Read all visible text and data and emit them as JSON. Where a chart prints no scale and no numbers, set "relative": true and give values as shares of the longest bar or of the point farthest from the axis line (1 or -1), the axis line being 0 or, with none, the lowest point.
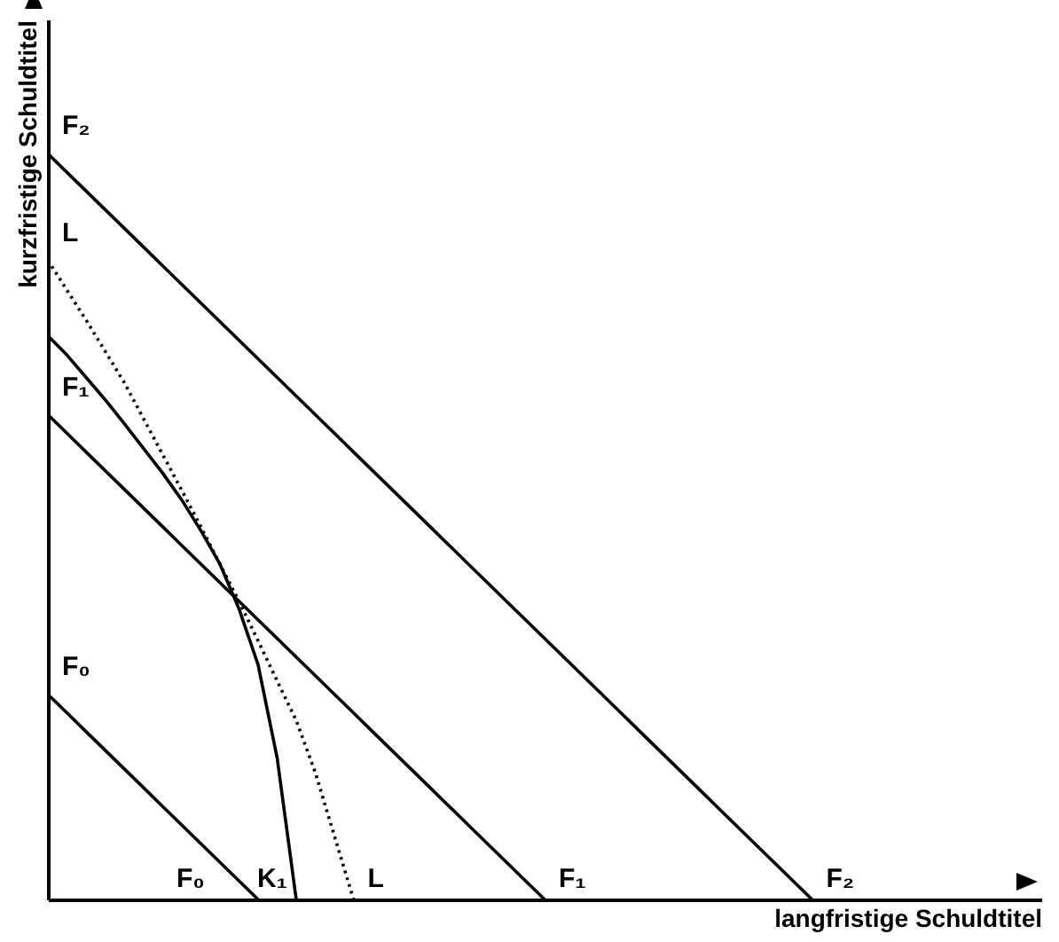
{
  "chart_data": {
    "type": "line",
    "relative": true,
    "xlabel": "langfristige Schuldtitel",
    "ylabel": "kurzfristige Schuldtitel",
    "categories": [
      null,
      null,
      null,
      null,
      null,
      null,
      null,
      null,
      null,
      null,
      null,
      null,
      null,
      null,
      null,
      null,
      null,
      null,
      null,
      null,
      null,
      null,
      null,
      null,
      null,
      null,
      null,
      null,
      null,
      null,
      null,
      null,
      null,
      null,
      null,
      null,
      null,
      null,
      null,
      null,
      null,
      null,
      null,
      null,
      null,
      null,
      null,
      null,
      null,
      null,
      null,
      null,
      null
    ],
    "series": [
      {
        "name": "F₀",
        "color": "#000000",
        "line_style": "solid",
        "values": [
          0.275,
          0.25,
          0.225,
          0.2,
          0.175,
          0.15,
          0.125,
          0.1,
          0.075,
          0.05,
          0.025,
          0,
          null,
          null,
          null,
          null,
          null,
          null,
          null,
          null,
          null,
          null,
          null,
          null,
          null,
          null,
          null,
          null,
          null,
          null,
          null,
          null,
          null,
          null,
          null,
          null,
          null,
          null,
          null,
          null,
          null,
          null,
          null,
          null,
          null,
          null,
          null,
          null,
          null,
          null,
          null,
          null,
          null
        ]
      },
      {
        "name": "F₁",
        "color": "#000000",
        "line_style": "solid",
        "values": [
          0.65,
          0.625,
          0.6,
          0.575,
          0.55,
          0.525,
          0.5,
          0.475,
          0.45,
          0.425,
          0.4,
          0.375,
          0.35,
          0.325,
          0.3,
          0.275,
          0.25,
          0.225,
          0.2,
          0.175,
          0.15,
          0.125,
          0.1,
          0.075,
          0.05,
          0.025,
          0,
          null,
          null,
          null,
          null,
          null,
          null,
          null,
          null,
          null,
          null,
          null,
          null,
          null,
          null,
          null,
          null,
          null,
          null,
          null,
          null,
          null,
          null,
          null,
          null,
          null,
          null
        ]
      },
      {
        "name": "F₂",
        "color": "#000000",
        "line_style": "solid",
        "values": [
          1,
          0.975,
          0.95,
          0.925,
          0.9,
          0.875,
          0.85,
          0.825,
          0.8,
          0.775,
          0.75,
          0.725,
          0.7,
          0.675,
          0.65,
          0.625,
          0.6,
          0.575,
          0.55,
          0.525,
          0.5,
          0.475,
          0.45,
          0.425,
          0.4,
          0.375,
          0.35,
          0.325,
          0.3,
          0.275,
          0.25,
          0.225,
          0.2,
          0.175,
          0.15,
          0.125,
          0.1,
          0.075,
          0.05,
          0.025,
          0,
          null,
          null,
          null,
          null,
          null,
          null,
          null,
          null,
          null,
          null,
          null,
          null
        ]
      },
      {
        "name": "L",
        "color": "#000000",
        "line_style": "dotted",
        "values": [
          0.857,
          0.817,
          0.777,
          0.735,
          0.693,
          0.645,
          0.597,
          0.549,
          0.5,
          0.45,
          0.4,
          0.347,
          0.293,
          0.24,
          0.17,
          0.085,
          0,
          null,
          null,
          null,
          null,
          null,
          null,
          null,
          null,
          null,
          null,
          null,
          null,
          null,
          null,
          null,
          null,
          null,
          null,
          null,
          null,
          null,
          null,
          null,
          null,
          null,
          null,
          null,
          null,
          null,
          null,
          null,
          null,
          null,
          null,
          null,
          null
        ]
      },
      {
        "name": "K₁",
        "color": "#000000",
        "line_style": "solid",
        "values": [
          0.756,
          0.73,
          0.7,
          0.67,
          0.638,
          0.605,
          0.572,
          0.536,
          0.495,
          0.45,
          0.39,
          0.315,
          0.19,
          0,
          null,
          null,
          null,
          null,
          null,
          null,
          null,
          null,
          null,
          null,
          null,
          null,
          null,
          null,
          null,
          null,
          null,
          null,
          null,
          null,
          null,
          null,
          null,
          null,
          null,
          null,
          null,
          null,
          null,
          null,
          null,
          null,
          null,
          null,
          null,
          null,
          null,
          null,
          null
        ]
      }
    ],
    "annotations": [
      "F₂",
      "L",
      "F₁",
      "F₀"
    ]
  }
}
